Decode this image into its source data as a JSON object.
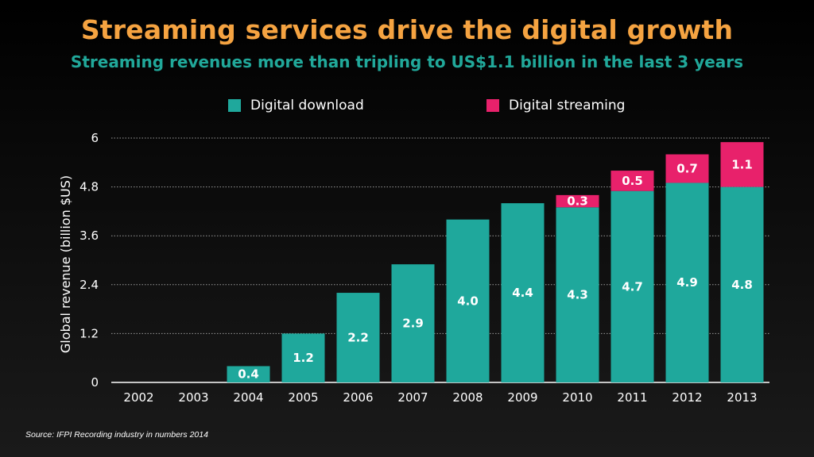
{
  "title": "Streaming services drive the digital growth",
  "subtitle": "Streaming revenues more than tripling to US$1.1 billion in the last 3 years",
  "source": "Source: IFPI Recording industry in numbers 2014",
  "colors": {
    "title": "#f5a341",
    "subtitle": "#21a89a",
    "download": "#1fa89c",
    "streaming": "#e8216b"
  },
  "chart_data": {
    "type": "bar",
    "stacked": true,
    "title": "Streaming services drive the digital growth",
    "xlabel": "",
    "ylabel": "Global revenue (billion $US)",
    "ylim": [
      0,
      6
    ],
    "yticks": [
      "0",
      "1.2",
      "2.4",
      "3.6",
      "4.8",
      "6"
    ],
    "grid": true,
    "legend_position": "top",
    "categories": [
      "2002",
      "2003",
      "2004",
      "2005",
      "2006",
      "2007",
      "2008",
      "2009",
      "2010",
      "2011",
      "2012",
      "2013"
    ],
    "series": [
      {
        "name": "Digital download",
        "color": "#1fa89c",
        "values": [
          0,
          0,
          0.4,
          1.2,
          2.2,
          2.9,
          4.0,
          4.4,
          4.3,
          4.7,
          4.9,
          4.8
        ],
        "labels": [
          "",
          "",
          "0.4",
          "1.2",
          "2.2",
          "2.9",
          "4.0",
          "4.4",
          "4.3",
          "4.7",
          "4.9",
          "4.8"
        ]
      },
      {
        "name": "Digital streaming",
        "color": "#e8216b",
        "values": [
          0,
          0,
          0,
          0,
          0,
          0,
          0,
          0,
          0.3,
          0.5,
          0.7,
          1.1
        ],
        "labels": [
          "",
          "",
          "",
          "",
          "",
          "",
          "",
          "",
          "0.3",
          "0.5",
          "0.7",
          "1.1"
        ]
      }
    ]
  }
}
